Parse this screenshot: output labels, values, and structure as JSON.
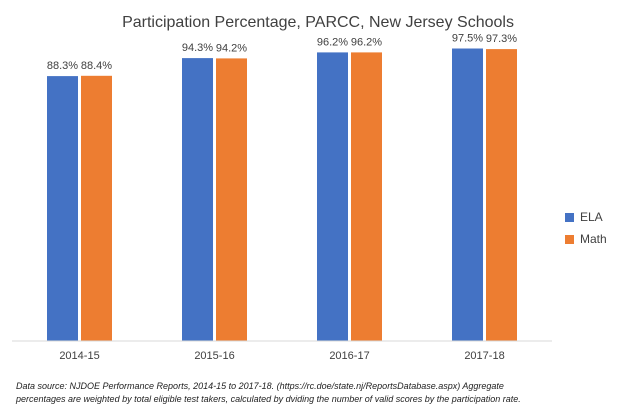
{
  "chart_data": {
    "type": "bar",
    "title": "Participation Percentage, PARCC, New Jersey Schools",
    "categories": [
      "2014-15",
      "2015-16",
      "2016-17",
      "2017-18"
    ],
    "series": [
      {
        "name": "ELA",
        "color": "#4472C4",
        "values": [
          88.3,
          94.3,
          96.2,
          97.5
        ],
        "labels": [
          "88.3%",
          "94.3%",
          "96.2%",
          "97.5%"
        ]
      },
      {
        "name": "Math",
        "color": "#ED7D31",
        "values": [
          88.4,
          94.2,
          96.2,
          97.3
        ],
        "labels": [
          "88.4%",
          "94.2%",
          "96.2%",
          "97.3%"
        ]
      }
    ],
    "ylim": [
      0,
      100
    ],
    "grid": false,
    "legend": "right"
  },
  "footnote": {
    "line1": "Data source: NJDOE Performance Reports, 2014-15 to 2017-18. (https://rc.doe/state.nj/ReportsDatabase.aspx) Aggregate",
    "line2": "percentages are weighted by total eligible test takers, calculated by dviding the number of valid scores by the participation rate."
  }
}
